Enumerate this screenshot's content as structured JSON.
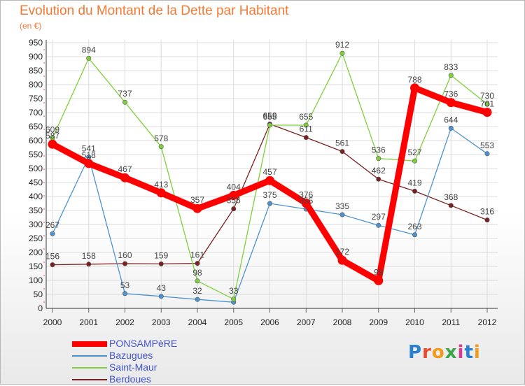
{
  "title": "Evolution du Montant de la Dette par Habitant",
  "unit": "(en €)",
  "logo": {
    "text": "Proxiti",
    "letters": [
      "P",
      "r",
      "o",
      "x",
      "i",
      "t",
      "i"
    ],
    "colors": [
      "#2a7fd1",
      "#e94c2c",
      "#f39a1b",
      "#3aa64a",
      "#d23e8f",
      "#2a7fd1",
      "#f39a1b"
    ]
  },
  "chart_data": {
    "type": "line",
    "x": [
      "2000",
      "2001",
      "2002",
      "2003",
      "2004",
      "2005",
      "2006",
      "2007",
      "2008",
      "2009",
      "2010",
      "2011",
      "2012"
    ],
    "ylim": [
      0,
      950
    ],
    "y_ticks": [
      0,
      50,
      100,
      150,
      200,
      250,
      300,
      350,
      400,
      450,
      500,
      550,
      600,
      650,
      700,
      750,
      800,
      850,
      900,
      950
    ],
    "grid": true,
    "legend_position": "bottom-left",
    "series": [
      {
        "name": "PONSAMPèRE",
        "color": "#ff0000",
        "values": [
          587,
          518,
          467,
          413,
          357,
          404,
          457,
          376,
          172,
          99,
          788,
          736,
          701
        ]
      },
      {
        "name": "Bazugues",
        "color": "#4d93cf",
        "values": [
          267,
          541,
          53,
          43,
          32,
          22,
          375,
          355,
          335,
          297,
          263,
          644,
          553
        ]
      },
      {
        "name": "Saint-Maur",
        "color": "#7fd03a",
        "values": [
          609,
          894,
          737,
          578,
          98,
          33,
          655,
          655,
          912,
          536,
          527,
          833,
          730
        ]
      },
      {
        "name": "Berdoues",
        "color": "#7a2020",
        "values": [
          156,
          158,
          160,
          159,
          161,
          356,
          659,
          611,
          561,
          462,
          419,
          368,
          316
        ]
      }
    ],
    "data_labels": [
      {
        "series": 0,
        "labels": [
          "587",
          "518",
          "467",
          "413",
          "357",
          "404",
          "457",
          "376",
          "172",
          "99",
          "788",
          "736",
          "701"
        ]
      },
      {
        "series": 1,
        "labels": [
          "267",
          "541",
          "53",
          "43",
          "32",
          "",
          "375",
          "355",
          "335",
          "297",
          "263",
          "644",
          "553"
        ]
      },
      {
        "series": 2,
        "labels": [
          "609",
          "894",
          "737",
          "578",
          "98",
          "33",
          "655",
          "655",
          "912",
          "536",
          "527",
          "833",
          "730"
        ]
      },
      {
        "series": 3,
        "labels": [
          "156",
          "158",
          "160",
          "159",
          "161",
          "356",
          "659",
          "611",
          "561",
          "462",
          "419",
          "368",
          "316"
        ]
      }
    ]
  }
}
